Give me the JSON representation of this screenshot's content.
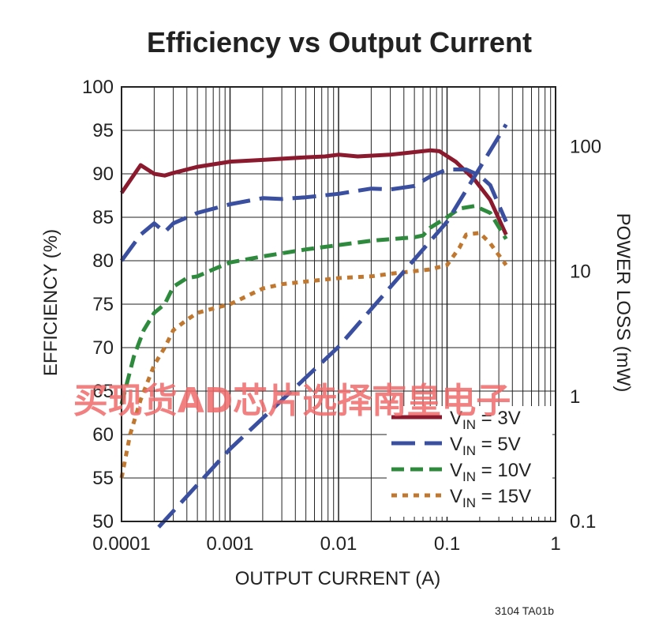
{
  "chart_data": {
    "type": "line",
    "title": "Efficiency vs Output Current",
    "xlabel": "OUTPUT CURRENT (A)",
    "ylabel": "EFFICIENCY (%)",
    "y2label": "POWER LOSS (mW)",
    "x_scale": "log",
    "xlim": [
      0.0001,
      1
    ],
    "ylim": [
      50,
      100
    ],
    "y2_scale": "log",
    "y2lim": [
      0.1,
      300
    ],
    "grid": true,
    "legend_position": "bottom-right",
    "x_tick_labels": [
      "0.0001",
      "0.001",
      "0.01",
      "0.1",
      "1"
    ],
    "x_tick_values": [
      0.0001,
      0.001,
      0.01,
      0.1,
      1
    ],
    "y_tick_values": [
      50,
      55,
      60,
      65,
      70,
      75,
      80,
      85,
      90,
      95,
      100
    ],
    "y2_tick_labels": [
      "0.1",
      "1",
      "10",
      "100"
    ],
    "y2_tick_values": [
      0.1,
      1,
      10,
      100
    ],
    "series": [
      {
        "name": "VIN = 3V",
        "label_main": "V",
        "label_sub": "IN",
        "label_rest": " = 3V",
        "color": "#8b1a2e",
        "style": "solid",
        "axis": "left",
        "x": [
          0.0001,
          0.00015,
          0.0002,
          0.00025,
          0.0003,
          0.0005,
          0.001,
          0.002,
          0.005,
          0.0075,
          0.01,
          0.015,
          0.03,
          0.05,
          0.07,
          0.085,
          0.12,
          0.18,
          0.25,
          0.35
        ],
        "y": [
          87.8,
          91.0,
          90.0,
          89.8,
          90.1,
          90.8,
          91.4,
          91.6,
          91.9,
          92.0,
          92.2,
          92.0,
          92.2,
          92.5,
          92.7,
          92.6,
          91.4,
          89.3,
          87.0,
          83.0
        ]
      },
      {
        "name": "VIN = 5V",
        "label_main": "V",
        "label_sub": "IN",
        "label_rest": " = 5V",
        "color": "#3a4fa0",
        "style": "long-dash",
        "axis": "left",
        "x": [
          0.0001,
          0.00015,
          0.0002,
          0.00025,
          0.0003,
          0.0005,
          0.001,
          0.002,
          0.003,
          0.005,
          0.01,
          0.02,
          0.03,
          0.05,
          0.07,
          0.1,
          0.15,
          0.2,
          0.25,
          0.35
        ],
        "y": [
          80.0,
          83.0,
          84.3,
          83.3,
          84.3,
          85.5,
          86.5,
          87.2,
          87.1,
          87.3,
          87.7,
          88.3,
          88.2,
          88.6,
          89.7,
          90.5,
          90.5,
          89.8,
          88.7,
          84.5
        ]
      },
      {
        "name": "VIN = 10V",
        "label_main": "V",
        "label_sub": "IN",
        "label_rest": " = 10V",
        "color": "#2e8b3e",
        "style": "medium-dash",
        "axis": "left",
        "x": [
          0.0001,
          0.00013,
          0.00016,
          0.0002,
          0.00025,
          0.0003,
          0.0004,
          0.0005,
          0.0007,
          0.001,
          0.002,
          0.005,
          0.01,
          0.02,
          0.05,
          0.06,
          0.07,
          0.1,
          0.13,
          0.18,
          0.25,
          0.35
        ],
        "y": [
          63.5,
          69.0,
          72.0,
          74.0,
          75.0,
          77.0,
          78.0,
          78.2,
          79.0,
          79.8,
          80.5,
          81.3,
          81.8,
          82.3,
          82.7,
          82.9,
          83.8,
          85.0,
          86.0,
          86.3,
          85.5,
          82.5
        ]
      },
      {
        "name": "VIN = 15V",
        "label_main": "V",
        "label_sub": "IN",
        "label_rest": " = 15V",
        "color": "#c07830",
        "style": "dotted",
        "axis": "left",
        "x": [
          0.0001,
          0.00012,
          0.00015,
          0.0002,
          0.00025,
          0.0003,
          0.0004,
          0.0005,
          0.0007,
          0.001,
          0.002,
          0.003,
          0.005,
          0.01,
          0.02,
          0.03,
          0.05,
          0.07,
          0.1,
          0.13,
          0.15,
          0.2,
          0.25,
          0.35
        ],
        "y": [
          55.0,
          60.0,
          64.0,
          68.0,
          70.0,
          72.0,
          73.2,
          74.0,
          74.5,
          75.0,
          76.8,
          77.3,
          77.6,
          78.0,
          78.2,
          78.5,
          78.8,
          79.0,
          79.5,
          81.5,
          83.0,
          83.2,
          82.0,
          79.5
        ]
      },
      {
        "name": "Power loss (VIN = 5V)",
        "color": "#3a4fa0",
        "style": "long-dash",
        "axis": "right",
        "x": [
          0.00022,
          0.001,
          0.01,
          0.1,
          0.35
        ],
        "y": [
          0.09,
          0.38,
          2.5,
          25,
          150
        ]
      }
    ]
  },
  "footer_code": "3104 TA01b",
  "watermark": "买现货AD芯片选择南皇电子"
}
